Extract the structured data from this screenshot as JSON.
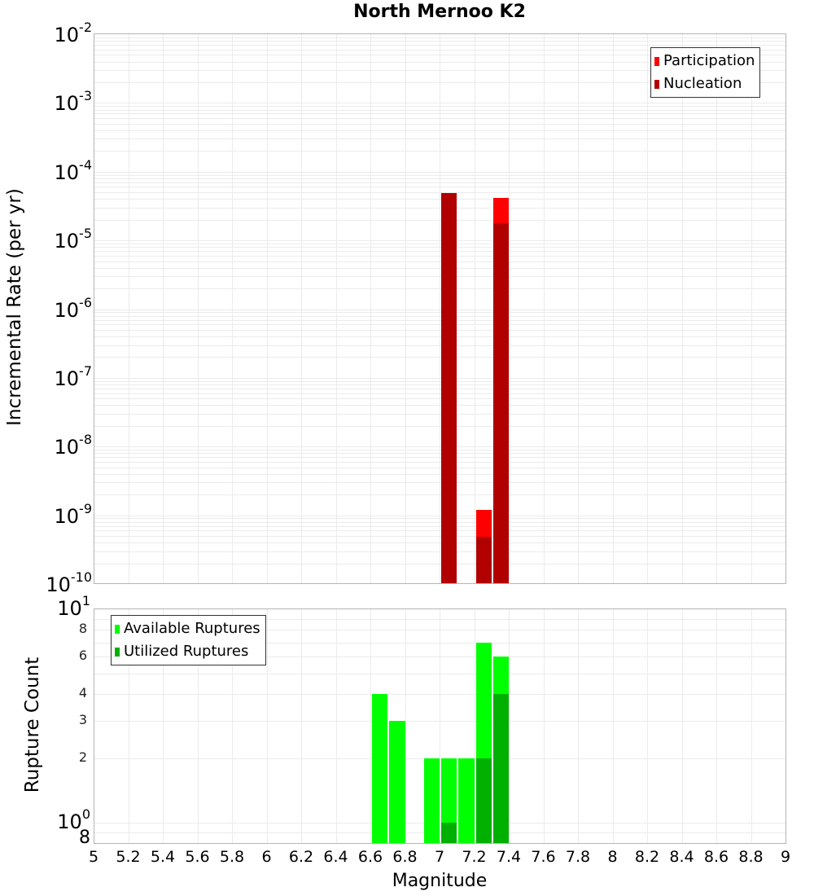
{
  "title": "North Mernoo K2",
  "colors": {
    "participation": "#FF0000",
    "nucleation": "#B00000",
    "available": "#00FF00",
    "utilized": "#00B000",
    "grid": "#EBEBEB",
    "border": "#B4B4B4"
  },
  "top_plot": {
    "ylabel": "Incremental Rate (per yr)",
    "legend": [
      {
        "label": "Participation",
        "color_key": "participation"
      },
      {
        "label": "Nucleation",
        "color_key": "nucleation"
      }
    ],
    "yticks_major": [
      {
        "base": "10",
        "exp": "-2"
      },
      {
        "base": "10",
        "exp": "-3"
      },
      {
        "base": "10",
        "exp": "-4"
      },
      {
        "base": "10",
        "exp": "-5"
      },
      {
        "base": "10",
        "exp": "-6"
      },
      {
        "base": "10",
        "exp": "-7"
      },
      {
        "base": "10",
        "exp": "-8"
      },
      {
        "base": "10",
        "exp": "-9"
      },
      {
        "base": "10",
        "exp": "-10"
      }
    ]
  },
  "bottom_plot": {
    "ylabel": "Rupture Count",
    "legend": [
      {
        "label": "Available Ruptures",
        "color_key": "available"
      },
      {
        "label": "Utilized Ruptures",
        "color_key": "utilized"
      }
    ],
    "yticks": [
      {
        "value": 10,
        "label": "10",
        "exp": "1",
        "major": true
      },
      {
        "value": 8,
        "label": "8",
        "major": false
      },
      {
        "value": 6,
        "label": "6",
        "major": false
      },
      {
        "value": 4,
        "label": "4",
        "major": false
      },
      {
        "value": 3,
        "label": "3",
        "major": false
      },
      {
        "value": 2,
        "label": "2",
        "major": false
      },
      {
        "value": 1,
        "label": "10",
        "exp": "0",
        "major": true
      },
      {
        "value": 0.8,
        "label": "8",
        "major": true
      }
    ]
  },
  "xlabel": "Magnitude",
  "xticks": [
    "5",
    "5.2",
    "5.4",
    "5.6",
    "5.8",
    "6",
    "6.2",
    "6.4",
    "6.6",
    "6.8",
    "7",
    "7.2",
    "7.4",
    "7.6",
    "7.8",
    "8",
    "8.2",
    "8.4",
    "8.6",
    "8.8",
    "9"
  ],
  "chart_data": [
    {
      "type": "bar",
      "title": "North Mernoo K2",
      "xlabel": "Magnitude",
      "ylabel": "Incremental Rate (per yr)",
      "yscale": "log",
      "xlim": [
        5,
        9
      ],
      "ylim": [
        1e-10,
        0.01
      ],
      "grid": true,
      "legend_position": "top-right",
      "bin_width": 0.1,
      "x": [
        7.05,
        7.25,
        7.35
      ],
      "series": [
        {
          "name": "Participation",
          "color": "#FF0000",
          "values": [
            4.9e-05,
            1.2e-09,
            4.2e-05
          ]
        },
        {
          "name": "Nucleation",
          "color": "#B00000",
          "values": [
            4.9e-05,
            4.9e-10,
            1.8e-05
          ]
        }
      ]
    },
    {
      "type": "bar",
      "xlabel": "Magnitude",
      "ylabel": "Rupture Count",
      "yscale": "log",
      "xlim": [
        5,
        9
      ],
      "ylim": [
        0.8,
        10
      ],
      "grid": true,
      "legend_position": "top-left",
      "bin_width": 0.1,
      "x": [
        6.65,
        6.75,
        6.95,
        7.05,
        7.15,
        7.25,
        7.35
      ],
      "series": [
        {
          "name": "Available Ruptures",
          "color": "#00FF00",
          "values": [
            4,
            3,
            2,
            2,
            2,
            7,
            6
          ]
        },
        {
          "name": "Utilized Ruptures",
          "color": "#00B000",
          "values": [
            0,
            0,
            0,
            1,
            0,
            2,
            4
          ]
        }
      ]
    }
  ]
}
